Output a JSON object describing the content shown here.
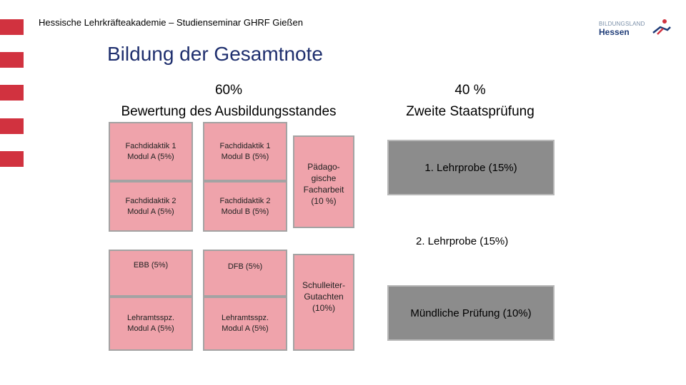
{
  "header": {
    "text": "Hessische Lehrkräfteakademie – Studienseminar GHRF Gießen"
  },
  "logo": {
    "top": "BILDUNGSLAND",
    "bottom": "Hessen",
    "mark_colors": [
      "#1f3c78",
      "#d1323f"
    ]
  },
  "title": "Bildung der Gesamtnote",
  "left_column": {
    "percent": "60%",
    "label": "Bewertung des Ausbildungsstandes"
  },
  "right_column": {
    "percent": "40 %",
    "label": "Zweite Staatsprüfung"
  },
  "left_boxes": [
    {
      "line1": "Fachdidaktik 1",
      "line2": "Modul A (5%)"
    },
    {
      "line1": "Fachdidaktik 1",
      "line2": "Modul B (5%)"
    },
    {
      "line1": "Fachdidaktik 2",
      "line2": "Modul A (5%)"
    },
    {
      "line1": "Fachdidaktik 2",
      "line2": "Modul B (5%)"
    },
    {
      "line1": "EBB  (5%)"
    },
    {
      "line1": "DFB (5%)"
    },
    {
      "line1": "Lehramtsspz.",
      "line2": "Modul A (5%)"
    },
    {
      "line1": "Lehramtsspz.",
      "line2": "Modul A (5%)"
    }
  ],
  "tall_boxes": [
    {
      "lines": [
        "Pädago-",
        "gische",
        "Facharbeit",
        "(10 %)"
      ]
    },
    {
      "lines": [
        "Schulleiter-",
        "Gutachten",
        "(10%)"
      ]
    }
  ],
  "right_items": {
    "lehrprobe1": "1. Lehrprobe (15%)",
    "lehrprobe2": "2. Lehrprobe (15%)",
    "muendlich": "Mündliche Prüfung (10%)"
  },
  "colors": {
    "stripe": "#d1323f",
    "title": "#1f2f6e",
    "pink_box": "#efa3ab",
    "gray_box": "#8c8c8c"
  }
}
